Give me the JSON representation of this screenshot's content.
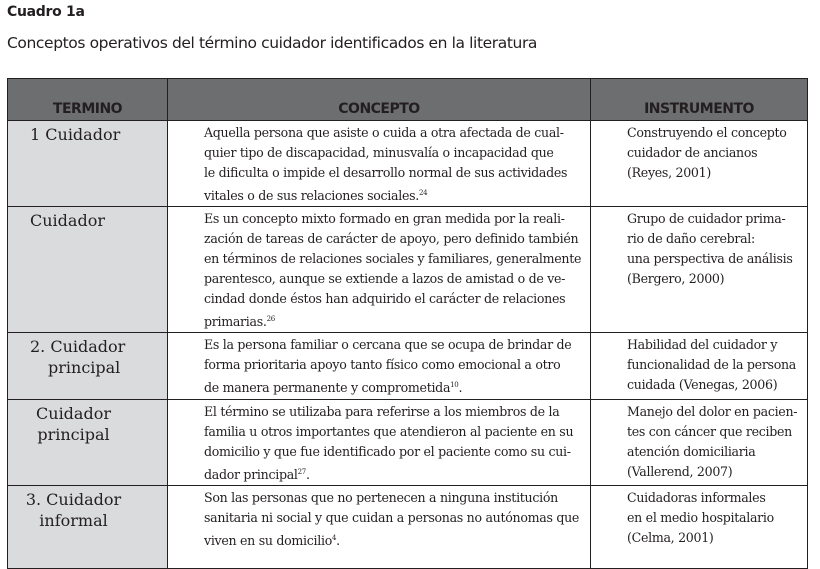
{
  "caption": {
    "label": "Cuadro 1a",
    "title": "Conceptos operativos del término cuidador identificados en la literatura"
  },
  "headers": [
    "TERMINO",
    "CONCEPTO",
    "INSTRUMENTO"
  ],
  "rows": [
    {
      "term": [
        "1 Cuidador"
      ],
      "term_align": "left",
      "concept": [
        "Aquella persona que asiste o cuida a otra afectada de cual-",
        "quier tipo de discapacidad, minusvalía o incapacidad que",
        "le dificulta o impide el desarrollo normal de sus actividades",
        "vitales o de sus relaciones sociales."
      ],
      "ref": "24",
      "ref_after": "",
      "instrument": [
        "Construyendo el concepto",
        "cuidador de ancianos",
        "(Reyes, 2001)"
      ]
    },
    {
      "term": [
        "Cuidador"
      ],
      "term_align": "left",
      "concept": [
        "Es un concepto mixto formado en gran medida por la reali-",
        "zación de tareas de carácter de apoyo, pero definido también",
        "en términos de relaciones sociales y familiares, generalmente",
        "parentesco, aunque se extiende a lazos de amistad o de ve-",
        "cindad donde éstos han adquirido el carácter de relaciones",
        "primarias."
      ],
      "ref": "26",
      "ref_after": "",
      "instrument": [
        "Grupo de cuidador prima-",
        "rio de daño cerebral:",
        "una perspectiva de análisis",
        "(Bergero, 2000)"
      ]
    },
    {
      "term": [
        "2. Cuidador",
        "principal"
      ],
      "term_align": "left",
      "concept": [
        "Es la persona familiar o cercana que se ocupa de brindar de",
        "forma prioritaria apoyo tanto físico como emocional  a otro",
        "de manera permanente y comprometida"
      ],
      "ref": "10",
      "ref_after": ".",
      "instrument": [
        "Habilidad del cuidador y",
        "funcionalidad de la persona",
        "cuidada (Venegas, 2006)"
      ]
    },
    {
      "term": [
        "Cuidador",
        "principal"
      ],
      "term_align": "center",
      "concept": [
        "El término se utilizaba para referirse a los miembros de la",
        "familia u otros importantes que atendieron al paciente en su",
        "domicilio y que fue identificado por el paciente como su cui-",
        "dador principal"
      ],
      "ref": "27",
      "ref_after": ".",
      "instrument": [
        "Manejo del dolor en pacien-",
        "tes con cáncer que reciben",
        "atención domiciliaria",
        "(Vallerend, 2007)"
      ]
    },
    {
      "term": [
        "3. Cuidador",
        "informal"
      ],
      "term_align": "center",
      "concept": [
        "Son las personas que no pertenecen a ninguna institución",
        "sanitaria ni social y que cuidan a personas no autónomas que",
        "viven en su domicilio"
      ],
      "ref": "4",
      "ref_after": ".",
      "instrument": [
        "Cuidadoras informales",
        "en el medio hospitalario",
        "(Celma, 2001)"
      ]
    }
  ]
}
